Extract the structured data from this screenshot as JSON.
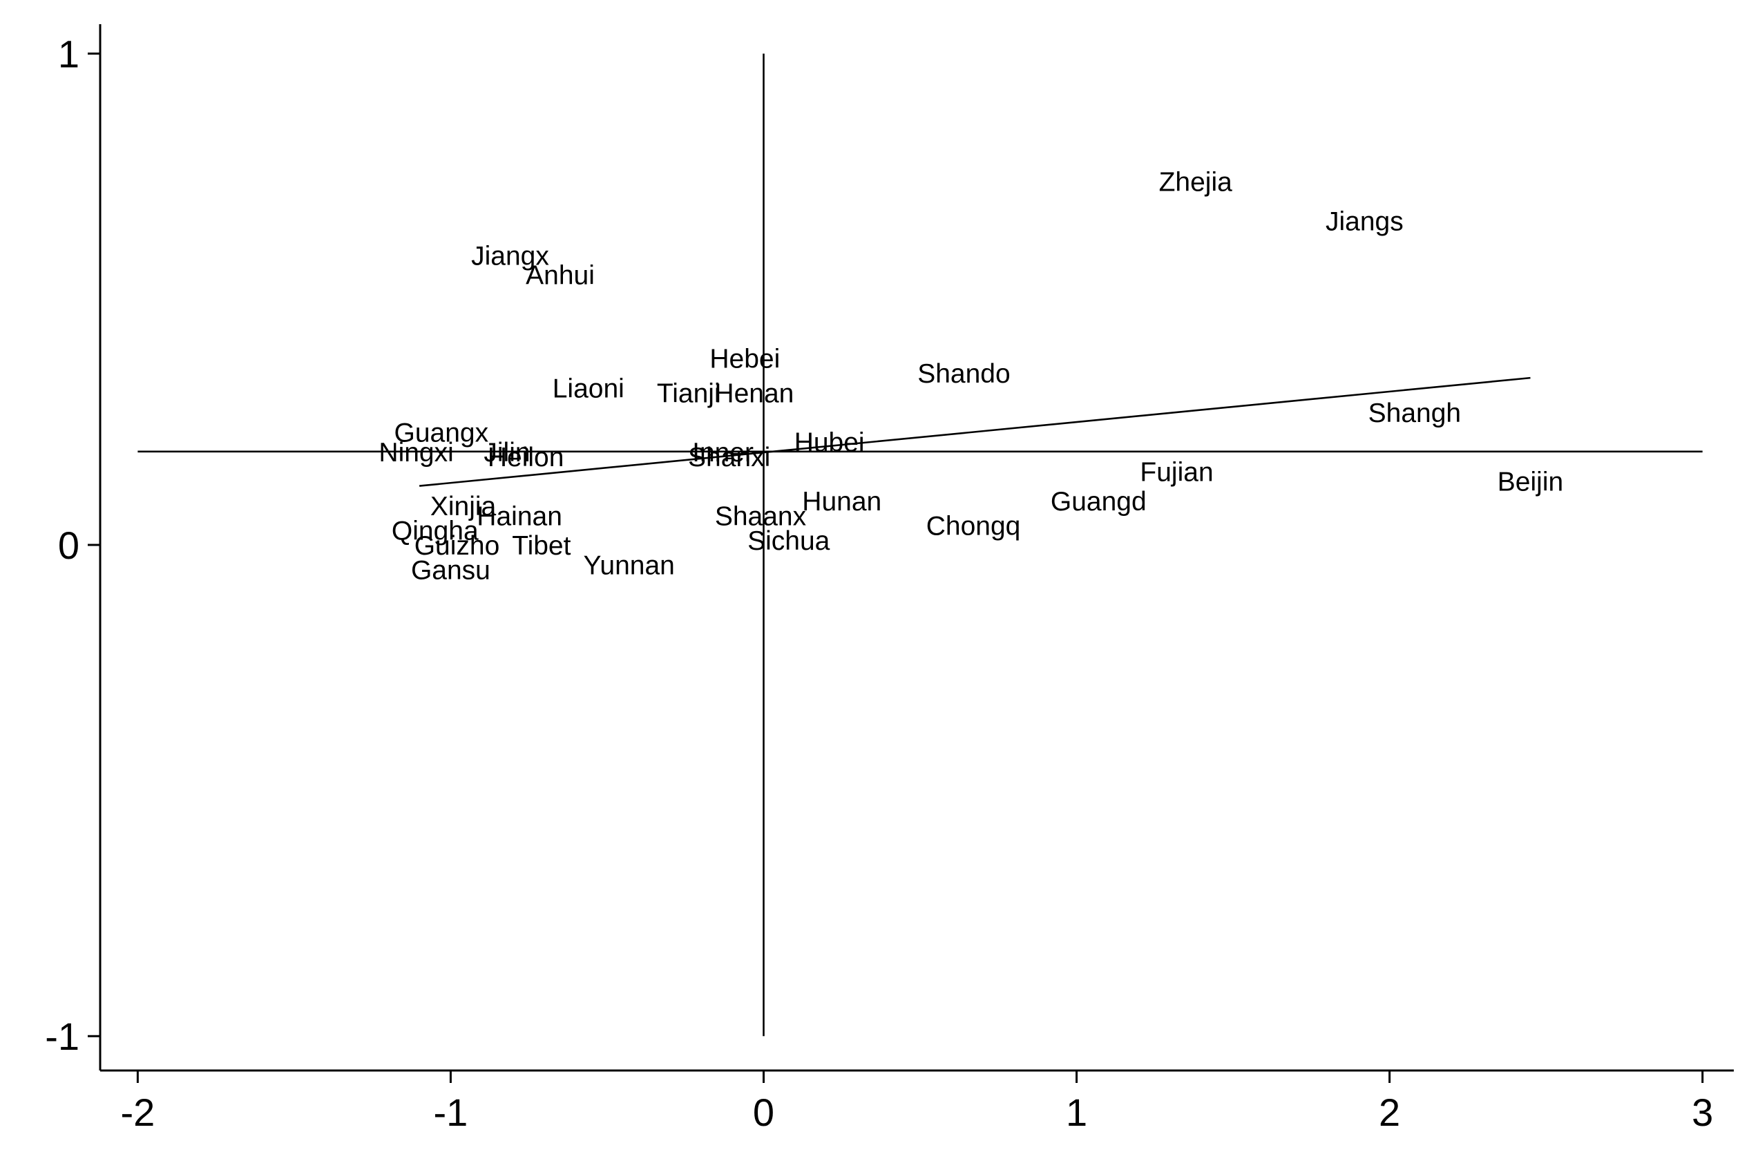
{
  "chart_data": {
    "type": "scatter",
    "title": "",
    "xlabel": "",
    "ylabel": "",
    "xlim": [
      -2.12,
      3.1
    ],
    "ylim": [
      -1.07,
      1.06
    ],
    "x_ticks": [
      -2,
      -1,
      0,
      1,
      2,
      3
    ],
    "y_ticks": [
      -1,
      0,
      1
    ],
    "x_tick_labels": [
      "-2",
      "-1",
      "0",
      "1",
      "2",
      "3"
    ],
    "y_tick_labels": [
      "-1",
      "0",
      "1"
    ],
    "grid": false,
    "legend": "none",
    "reference_lines": {
      "vertical_x": 0,
      "vertical_y_range": [
        -1,
        1
      ],
      "horizontal_y": 0.19,
      "horizontal_x_range": [
        -2,
        3
      ]
    },
    "fit_line": {
      "x": [
        -1.1,
        2.45
      ],
      "y": [
        0.12,
        0.34
      ]
    },
    "points": [
      {
        "label": "Zhejia",
        "x": 1.38,
        "y": 0.74
      },
      {
        "label": "Jiangs",
        "x": 1.92,
        "y": 0.66
      },
      {
        "label": "Jiangx",
        "x": -0.81,
        "y": 0.59
      },
      {
        "label": "Anhui",
        "x": -0.65,
        "y": 0.55
      },
      {
        "label": "Hebei",
        "x": -0.06,
        "y": 0.38
      },
      {
        "label": "Shando",
        "x": 0.64,
        "y": 0.35
      },
      {
        "label": "Liaoni",
        "x": -0.56,
        "y": 0.32
      },
      {
        "label": "Tianji",
        "x": -0.24,
        "y": 0.31
      },
      {
        "label": "Henan",
        "x": -0.03,
        "y": 0.31
      },
      {
        "label": "Shangh",
        "x": 2.08,
        "y": 0.27
      },
      {
        "label": "Guangx",
        "x": -1.03,
        "y": 0.23
      },
      {
        "label": "Ningxi",
        "x": -1.11,
        "y": 0.19
      },
      {
        "label": "Jilin",
        "x": -0.82,
        "y": 0.19
      },
      {
        "label": "Heilon",
        "x": -0.76,
        "y": 0.18
      },
      {
        "label": "Inner",
        "x": -0.13,
        "y": 0.19
      },
      {
        "label": "Shanxi",
        "x": -0.11,
        "y": 0.18
      },
      {
        "label": "Hubei",
        "x": 0.21,
        "y": 0.21
      },
      {
        "label": "Fujian",
        "x": 1.32,
        "y": 0.15
      },
      {
        "label": "Beijin",
        "x": 2.45,
        "y": 0.13
      },
      {
        "label": "Hunan",
        "x": 0.25,
        "y": 0.09
      },
      {
        "label": "Guangd",
        "x": 1.07,
        "y": 0.09
      },
      {
        "label": "Xinjia",
        "x": -0.96,
        "y": 0.08
      },
      {
        "label": "Hainan",
        "x": -0.78,
        "y": 0.06
      },
      {
        "label": "Shaanx",
        "x": -0.01,
        "y": 0.06
      },
      {
        "label": "Chongq",
        "x": 0.67,
        "y": 0.04
      },
      {
        "label": "Qingha",
        "x": -1.05,
        "y": 0.03
      },
      {
        "label": "Sichua",
        "x": 0.08,
        "y": 0.01
      },
      {
        "label": "Guizho",
        "x": -0.98,
        "y": 0.0
      },
      {
        "label": "Tibet",
        "x": -0.71,
        "y": 0.0
      },
      {
        "label": "Yunnan",
        "x": -0.43,
        "y": -0.04
      },
      {
        "label": "Gansu",
        "x": -1.0,
        "y": -0.05
      }
    ]
  }
}
